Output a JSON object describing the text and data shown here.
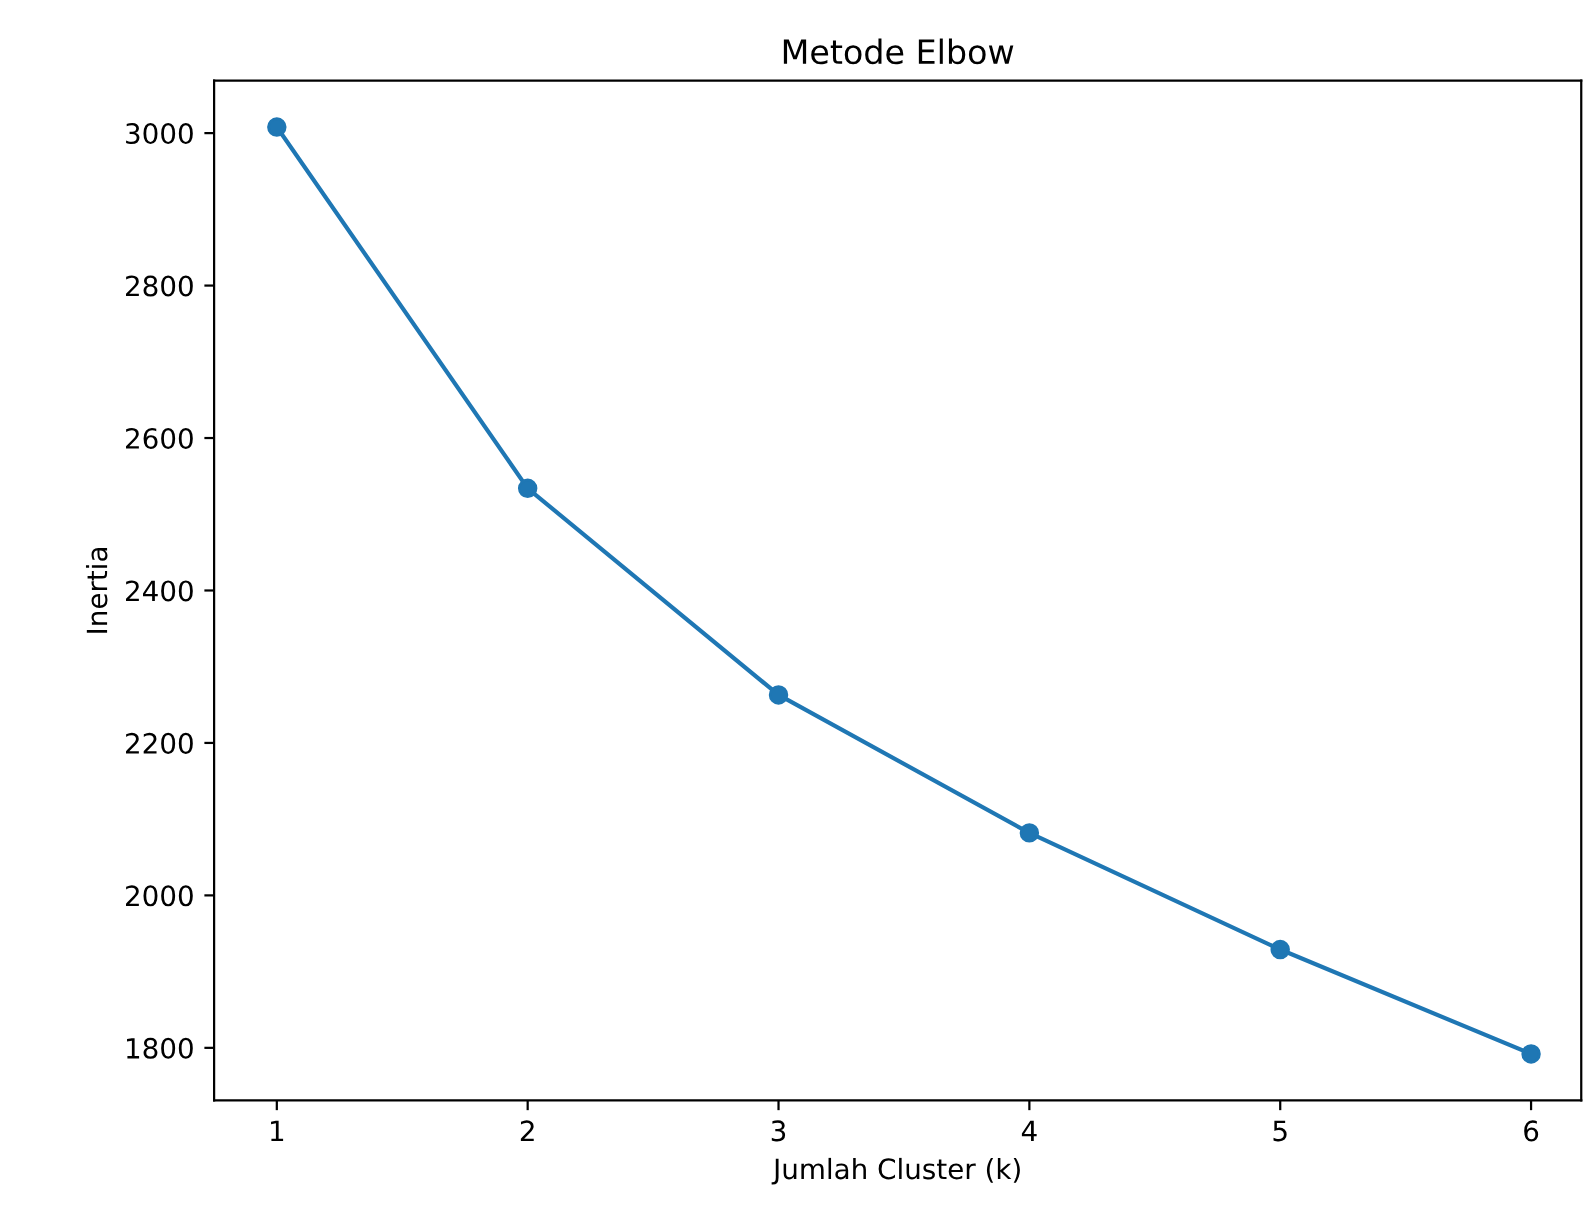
{
  "chart_data": {
    "type": "line",
    "title": "Metode Elbow",
    "xlabel": "Jumlah Cluster (k)",
    "ylabel": "Inertia",
    "x": [
      1,
      2,
      3,
      4,
      5,
      6
    ],
    "series": [
      {
        "color": "#1f77b4",
        "values": [
          3008,
          2534,
          2263,
          2082,
          1929,
          1792
        ]
      }
    ],
    "xlim": [
      0.75,
      6.2
    ],
    "ylim": [
      1731,
      3069
    ],
    "xticks": [
      1,
      2,
      3,
      4,
      5,
      6
    ],
    "yticks": [
      1800,
      2000,
      2200,
      2400,
      2600,
      2800,
      3000
    ],
    "marker": "circle",
    "line_style": "solid",
    "grid": false,
    "legend": false
  }
}
